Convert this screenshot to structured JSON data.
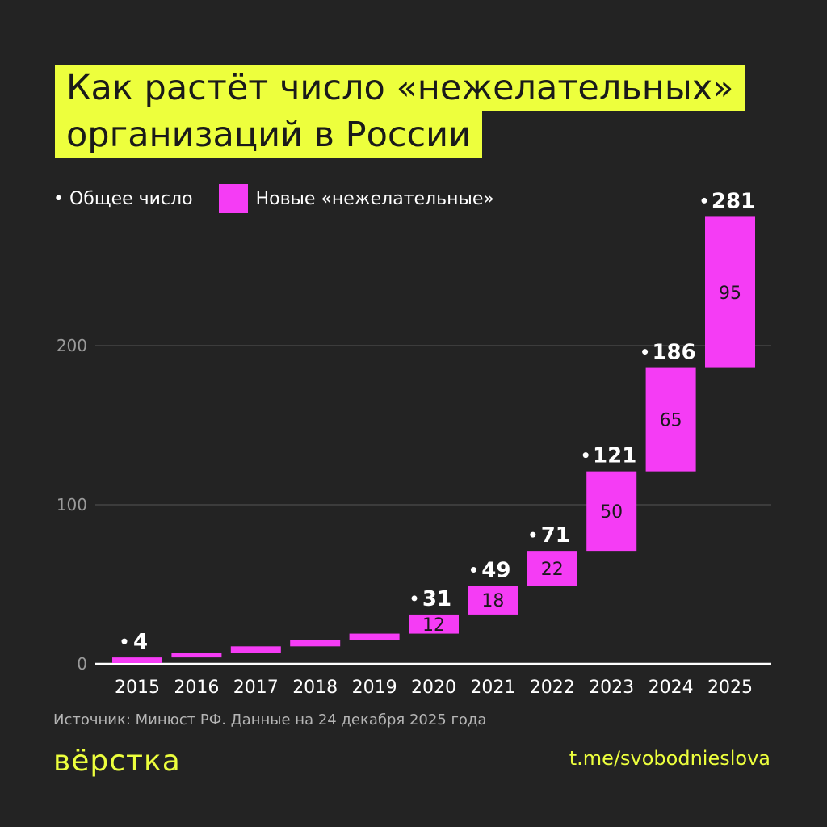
{
  "title_line1": "Как растёт число «нежелательных»",
  "title_line2": "организаций в России",
  "legend": {
    "total": "• Общее число",
    "new": "Новые «нежелательные»"
  },
  "colors": {
    "background": "#232323",
    "accent_yellow": "#edff3d",
    "bar": "#f53cf5"
  },
  "chart_data": {
    "type": "bar",
    "subtype": "waterfall",
    "categories": [
      "2015",
      "2016",
      "2017",
      "2018",
      "2019",
      "2020",
      "2021",
      "2022",
      "2023",
      "2024",
      "2025"
    ],
    "series": [
      {
        "name": "Новые «нежелательные»",
        "values": [
          4,
          3,
          4,
          4,
          4,
          12,
          18,
          22,
          50,
          65,
          95
        ]
      },
      {
        "name": "Общее число",
        "values": [
          4,
          7,
          11,
          15,
          19,
          31,
          49,
          71,
          121,
          186,
          281
        ]
      }
    ],
    "labeled_totals": [
      "2015",
      "2020",
      "2021",
      "2022",
      "2023",
      "2024",
      "2025"
    ],
    "labeled_new": [
      "2020",
      "2021",
      "2022",
      "2023",
      "2024",
      "2025"
    ],
    "yticks": [
      0,
      100,
      200
    ],
    "ylim": [
      0,
      290
    ],
    "grid": true
  },
  "source": "Источник: Минюст РФ. Данные на 24 декабря 2025 года",
  "logo": "вёрстка",
  "link": "t.me/svobodnieslova"
}
